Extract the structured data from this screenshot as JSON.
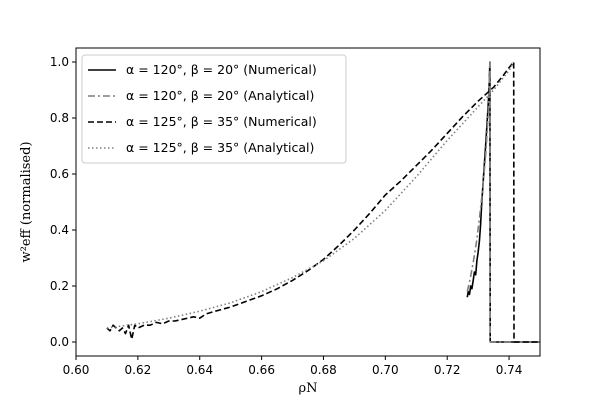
{
  "chart_data": {
    "type": "line",
    "xlabel": "ρN",
    "ylabel": "w²eff (normalised)",
    "xlim": [
      0.6,
      0.75
    ],
    "ylim": [
      -0.05,
      1.05
    ],
    "xticks": [
      "0.60",
      "0.62",
      "0.64",
      "0.66",
      "0.68",
      "0.70",
      "0.72",
      "0.74"
    ],
    "yticks": [
      "0.0",
      "0.2",
      "0.4",
      "0.6",
      "0.8",
      "1.0"
    ],
    "grid": false,
    "legend_position": "top-left",
    "series": [
      {
        "name": "α = 120°, β = 20° (Numerical)",
        "color": "#000000",
        "style": "solid",
        "points": [
          [
            0.7265,
            0.16
          ],
          [
            0.7268,
            0.18
          ],
          [
            0.7272,
            0.17
          ],
          [
            0.7276,
            0.2
          ],
          [
            0.728,
            0.19
          ],
          [
            0.7284,
            0.22
          ],
          [
            0.7288,
            0.25
          ],
          [
            0.7292,
            0.24
          ],
          [
            0.7296,
            0.29
          ],
          [
            0.73,
            0.32
          ],
          [
            0.7304,
            0.36
          ],
          [
            0.7308,
            0.42
          ],
          [
            0.7312,
            0.5
          ],
          [
            0.7318,
            0.6
          ],
          [
            0.7324,
            0.7
          ],
          [
            0.733,
            0.8
          ],
          [
            0.7335,
            0.9
          ],
          [
            0.7338,
            1.0
          ],
          [
            0.7339,
            0.0
          ],
          [
            0.75,
            0.0
          ]
        ]
      },
      {
        "name": "α = 120°, β = 20° (Analytical)",
        "color": "#7f7f7f",
        "style": "dashdot",
        "points": [
          [
            0.7265,
            0.18
          ],
          [
            0.7275,
            0.23
          ],
          [
            0.7285,
            0.29
          ],
          [
            0.7295,
            0.36
          ],
          [
            0.7305,
            0.45
          ],
          [
            0.7315,
            0.55
          ],
          [
            0.7325,
            0.68
          ],
          [
            0.7333,
            0.82
          ],
          [
            0.7338,
            1.0
          ],
          [
            0.7339,
            0.0
          ],
          [
            0.75,
            0.0
          ]
        ]
      },
      {
        "name": "α = 125°, β = 35° (Numerical)",
        "color": "#000000",
        "style": "dashed",
        "points": [
          [
            0.61,
            0.05
          ],
          [
            0.611,
            0.04
          ],
          [
            0.612,
            0.06
          ],
          [
            0.613,
            0.05
          ],
          [
            0.614,
            0.04
          ],
          [
            0.615,
            0.05
          ],
          [
            0.616,
            0.03
          ],
          [
            0.617,
            0.06
          ],
          [
            0.618,
            0.01
          ],
          [
            0.619,
            0.06
          ],
          [
            0.62,
            0.05
          ],
          [
            0.622,
            0.06
          ],
          [
            0.624,
            0.06
          ],
          [
            0.626,
            0.07
          ],
          [
            0.628,
            0.065
          ],
          [
            0.63,
            0.075
          ],
          [
            0.632,
            0.075
          ],
          [
            0.634,
            0.08
          ],
          [
            0.636,
            0.085
          ],
          [
            0.638,
            0.09
          ],
          [
            0.64,
            0.085
          ],
          [
            0.642,
            0.1
          ],
          [
            0.645,
            0.11
          ],
          [
            0.65,
            0.125
          ],
          [
            0.655,
            0.145
          ],
          [
            0.66,
            0.165
          ],
          [
            0.665,
            0.19
          ],
          [
            0.67,
            0.22
          ],
          [
            0.675,
            0.255
          ],
          [
            0.68,
            0.295
          ],
          [
            0.685,
            0.345
          ],
          [
            0.69,
            0.4
          ],
          [
            0.695,
            0.46
          ],
          [
            0.7,
            0.525
          ],
          [
            0.705,
            0.575
          ],
          [
            0.71,
            0.63
          ],
          [
            0.715,
            0.685
          ],
          [
            0.72,
            0.745
          ],
          [
            0.725,
            0.805
          ],
          [
            0.73,
            0.86
          ],
          [
            0.735,
            0.91
          ],
          [
            0.738,
            0.95
          ],
          [
            0.74,
            0.98
          ],
          [
            0.7415,
            1.0
          ],
          [
            0.7416,
            0.0
          ],
          [
            0.75,
            0.0
          ]
        ]
      },
      {
        "name": "α = 125°, β = 35° (Analytical)",
        "color": "#808080",
        "style": "dotted",
        "points": [
          [
            0.61,
            0.05
          ],
          [
            0.62,
            0.065
          ],
          [
            0.63,
            0.085
          ],
          [
            0.64,
            0.11
          ],
          [
            0.65,
            0.14
          ],
          [
            0.66,
            0.18
          ],
          [
            0.67,
            0.23
          ],
          [
            0.68,
            0.29
          ],
          [
            0.69,
            0.37
          ],
          [
            0.7,
            0.47
          ],
          [
            0.71,
            0.59
          ],
          [
            0.72,
            0.72
          ],
          [
            0.725,
            0.78
          ],
          [
            0.73,
            0.84
          ],
          [
            0.735,
            0.9
          ],
          [
            0.74,
            0.97
          ],
          [
            0.7415,
            1.0
          ]
        ]
      }
    ]
  }
}
